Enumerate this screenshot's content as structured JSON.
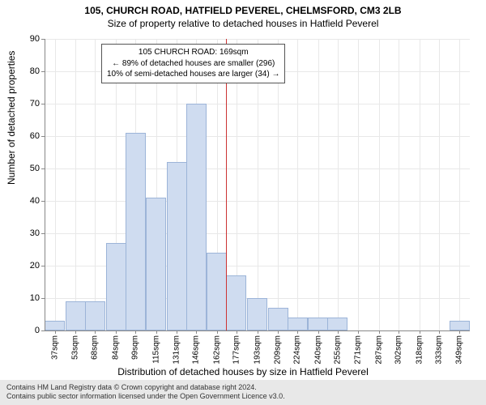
{
  "title": "105, CHURCH ROAD, HATFIELD PEVEREL, CHELMSFORD, CM3 2LB",
  "subtitle": "Size of property relative to detached houses in Hatfield Peverel",
  "ylabel": "Number of detached properties",
  "xlabel": "Distribution of detached houses by size in Hatfield Peverel",
  "annotation": {
    "line1": "105 CHURCH ROAD: 169sqm",
    "line2": "← 89% of detached houses are smaller (296)",
    "line3": "10% of semi-detached houses are larger (34) →"
  },
  "footer": {
    "line1": "Contains HM Land Registry data © Crown copyright and database right 2024.",
    "line2": "Contains public sector information licensed under the Open Government Licence v3.0."
  },
  "chart": {
    "type": "histogram",
    "background_color": "#ffffff",
    "grid_color": "#e8e8e8",
    "axis_color": "#888888",
    "bar_fill": "#cfdcf0",
    "bar_border": "#9cb4d8",
    "marker_color": "#cc3333",
    "marker_x": 169,
    "ylim": [
      0,
      90
    ],
    "ytick_step": 10,
    "xmin": 29,
    "xmax": 357,
    "xticks": [
      37,
      53,
      68,
      84,
      99,
      115,
      131,
      146,
      162,
      177,
      193,
      209,
      224,
      240,
      255,
      271,
      287,
      302,
      318,
      333,
      349
    ],
    "xtick_suffix": "sqm",
    "bar_width_units": 15.6,
    "bars": [
      {
        "x": 37,
        "h": 3
      },
      {
        "x": 53,
        "h": 9
      },
      {
        "x": 68,
        "h": 9
      },
      {
        "x": 84,
        "h": 27
      },
      {
        "x": 99,
        "h": 61
      },
      {
        "x": 115,
        "h": 41
      },
      {
        "x": 131,
        "h": 52
      },
      {
        "x": 146,
        "h": 70
      },
      {
        "x": 162,
        "h": 24
      },
      {
        "x": 177,
        "h": 17
      },
      {
        "x": 193,
        "h": 10
      },
      {
        "x": 209,
        "h": 7
      },
      {
        "x": 224,
        "h": 4
      },
      {
        "x": 240,
        "h": 4
      },
      {
        "x": 255,
        "h": 4
      },
      {
        "x": 349,
        "h": 3
      }
    ],
    "tick_fontsize": 10,
    "label_fontsize": 12,
    "annotation_fontsize": 10
  }
}
